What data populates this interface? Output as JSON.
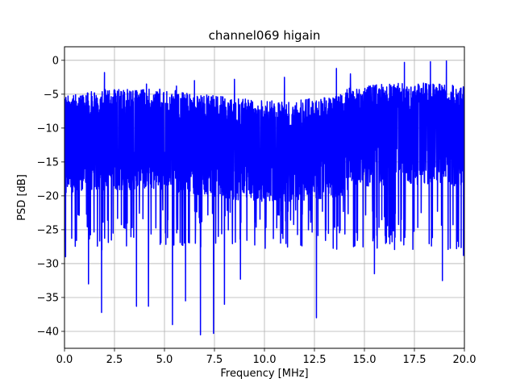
{
  "chart_data": {
    "type": "line",
    "title": "channel069 higain",
    "xlabel": "Frequency [MHz]",
    "ylabel": "PSD [dB]",
    "xlim": [
      0,
      20
    ],
    "ylim": [
      -42.5,
      2
    ],
    "grid": true,
    "x_ticks": [
      0,
      2.5,
      5,
      7.5,
      10,
      12.5,
      15,
      17.5,
      20
    ],
    "x_tick_labels": [
      "0.0",
      "2.5",
      "5.0",
      "7.5",
      "10.0",
      "12.5",
      "15.0",
      "17.5",
      "20.0"
    ],
    "y_ticks": [
      0,
      -5,
      -10,
      -15,
      -20,
      -25,
      -30,
      -35,
      -40
    ],
    "y_tick_labels": [
      "0",
      "−5",
      "−10",
      "−15",
      "−20",
      "−25",
      "−30",
      "−35",
      "−40"
    ],
    "series": [
      {
        "color": "#0000ff",
        "noise_band": {
          "upper_typical": -5,
          "lower_typical": -20,
          "center": -12.5
        },
        "peaks": [
          {
            "x": 2.0,
            "y": -1.8
          },
          {
            "x": 4.1,
            "y": -3.5
          },
          {
            "x": 5.6,
            "y": -3.8
          },
          {
            "x": 6.5,
            "y": -3.0
          },
          {
            "x": 8.5,
            "y": -2.8
          },
          {
            "x": 11.0,
            "y": -2.5
          },
          {
            "x": 13.6,
            "y": -1.2
          },
          {
            "x": 14.3,
            "y": -2.0
          },
          {
            "x": 17.0,
            "y": -0.3
          },
          {
            "x": 18.3,
            "y": -0.2
          },
          {
            "x": 19.1,
            "y": -0.1
          }
        ],
        "dips": [
          {
            "x": 0.05,
            "y": -29.0
          },
          {
            "x": 1.2,
            "y": -33.0
          },
          {
            "x": 1.85,
            "y": -37.2
          },
          {
            "x": 3.6,
            "y": -36.3
          },
          {
            "x": 4.2,
            "y": -36.3
          },
          {
            "x": 5.4,
            "y": -39.0
          },
          {
            "x": 6.05,
            "y": -35.5
          },
          {
            "x": 6.8,
            "y": -40.5
          },
          {
            "x": 7.45,
            "y": -40.3
          },
          {
            "x": 8.0,
            "y": -36.0
          },
          {
            "x": 8.8,
            "y": -32.3
          },
          {
            "x": 12.6,
            "y": -38.0
          },
          {
            "x": 15.5,
            "y": -31.5
          },
          {
            "x": 18.9,
            "y": -32.5
          },
          {
            "x": 19.95,
            "y": -28.8
          }
        ]
      }
    ]
  }
}
